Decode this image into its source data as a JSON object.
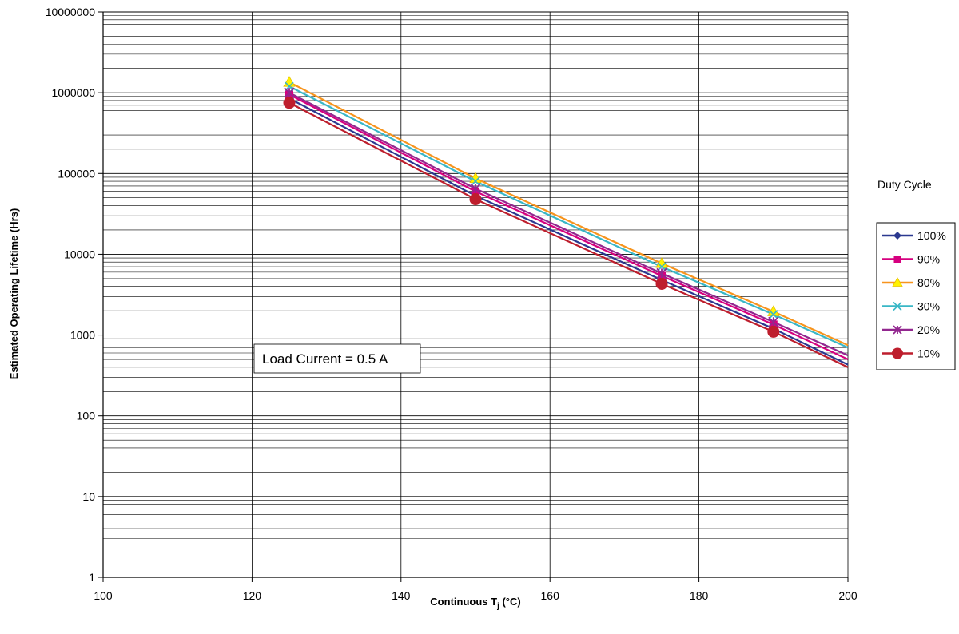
{
  "chart_data": {
    "type": "line",
    "title": "",
    "xlabel": "Continuous T",
    "xlabel_sub": "j",
    "xlabel_unit": " (°C)",
    "ylabel": "Estimated Operating Lifetime (Hrs)",
    "x_scale": "linear",
    "y_scale": "log",
    "xlim": [
      100,
      200
    ],
    "ylim": [
      1,
      10000000
    ],
    "x_ticks": [
      "100",
      "120",
      "140",
      "160",
      "180",
      "200"
    ],
    "y_ticks": [
      "1",
      "10",
      "100",
      "1000",
      "10000",
      "100000",
      "1000000",
      "10000000"
    ],
    "grid": true,
    "legend_title": "Duty Cycle",
    "legend_position": "right",
    "annotation": "Load Current = 0.5 A",
    "x": [
      125,
      150,
      175,
      190,
      200
    ],
    "series": [
      {
        "name": "100%",
        "color": "#2b3990",
        "marker": "diamond",
        "values": [
          850000,
          53000,
          4800,
          1200,
          430
        ]
      },
      {
        "name": "90%",
        "color": "#d6007f",
        "marker": "square",
        "values": [
          950000,
          60000,
          5400,
          1350,
          500
        ]
      },
      {
        "name": "80%",
        "color": "#f7941d",
        "marker": "triangle",
        "values": [
          1350000,
          87000,
          7700,
          1950,
          750
        ]
      },
      {
        "name": "30%",
        "color": "#39b7c6",
        "marker": "x",
        "values": [
          1200000,
          80000,
          7000,
          1800,
          700
        ]
      },
      {
        "name": "20%",
        "color": "#92278f",
        "marker": "star",
        "values": [
          1000000,
          65000,
          5800,
          1450,
          560
        ]
      },
      {
        "name": "10%",
        "color": "#be1e2d",
        "marker": "circle",
        "values": [
          750000,
          48000,
          4300,
          1100,
          400
        ]
      }
    ]
  }
}
